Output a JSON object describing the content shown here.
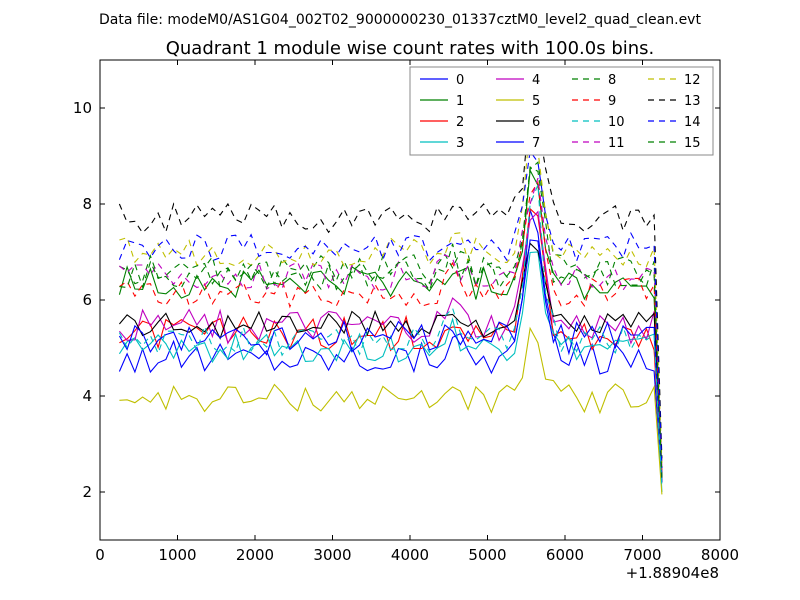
{
  "suptitle": "Data file: modeM0/AS1G04_002T02_9000000230_01337cztM0_level2_quad_clean.evt",
  "title": "Quadrant 1 module wise count rates with 100.0s bins.",
  "x_offset_label": "+1.88904e8",
  "chart_data": {
    "type": "line",
    "xlim": [
      0,
      8000
    ],
    "ylim": [
      1,
      11
    ],
    "x_ticks": [
      0,
      1000,
      2000,
      3000,
      4000,
      5000,
      6000,
      7000,
      8000
    ],
    "y_ticks": [
      2,
      4,
      6,
      8,
      10
    ],
    "legend_position": "top-right",
    "legend_columns": 4,
    "x": [
      250,
      350,
      450,
      550,
      650,
      750,
      850,
      950,
      1050,
      1150,
      1250,
      1350,
      1450,
      1550,
      1650,
      1750,
      1850,
      1950,
      2050,
      2150,
      2250,
      2350,
      2450,
      2550,
      2650,
      2750,
      2850,
      2950,
      3050,
      3150,
      3250,
      3350,
      3450,
      3550,
      3650,
      3750,
      3850,
      3950,
      4050,
      4150,
      4250,
      4350,
      4450,
      4550,
      4650,
      4750,
      4850,
      4950,
      5050,
      5150,
      5250,
      5350,
      5450,
      5550,
      5650,
      5750,
      5850,
      5950,
      6050,
      6150,
      6250,
      6350,
      6450,
      6550,
      6650,
      6750,
      6850,
      6950,
      7050,
      7150,
      7250
    ],
    "series": [
      {
        "name": "0",
        "color": "#0000ff",
        "dash": "solid",
        "base": 4.8,
        "amp": 0.35,
        "peak": 3.3,
        "end": 2.2
      },
      {
        "name": "1",
        "color": "#008000",
        "dash": "solid",
        "base": 6.35,
        "amp": 0.35,
        "peak": 2.6,
        "end": 2.3
      },
      {
        "name": "2",
        "color": "#ff0000",
        "dash": "solid",
        "base": 5.3,
        "amp": 0.35,
        "peak": 3.0,
        "end": 2.2
      },
      {
        "name": "3",
        "color": "#00bfbf",
        "dash": "solid",
        "base": 5.0,
        "amp": 0.3,
        "peak": 2.4,
        "end": 2.0
      },
      {
        "name": "4",
        "color": "#bf00bf",
        "dash": "solid",
        "base": 5.45,
        "amp": 0.35,
        "peak": 2.8,
        "end": 2.4
      },
      {
        "name": "5",
        "color": "#bfbf00",
        "dash": "solid",
        "base": 3.95,
        "amp": 0.3,
        "peak": 1.35,
        "end": 1.95
      },
      {
        "name": "6",
        "color": "#000000",
        "dash": "solid",
        "base": 5.5,
        "amp": 0.3,
        "peak": 1.7,
        "end": 2.3
      },
      {
        "name": "7",
        "color": "#0000ff",
        "dash": "solid",
        "base": 5.2,
        "amp": 0.35,
        "peak": 2.2,
        "end": 2.2
      },
      {
        "name": "8",
        "color": "#008000",
        "dash": "dashed",
        "base": 6.6,
        "amp": 0.35,
        "peak": 2.4,
        "end": 2.5
      },
      {
        "name": "9",
        "color": "#ff0000",
        "dash": "dashed",
        "base": 6.15,
        "amp": 0.3,
        "peak": 2.4,
        "end": 2.4
      },
      {
        "name": "10",
        "color": "#00bfbf",
        "dash": "dashed",
        "base": 5.15,
        "amp": 0.3,
        "peak": 3.4,
        "end": 2.1
      },
      {
        "name": "11",
        "color": "#bf00bf",
        "dash": "dashed",
        "base": 6.5,
        "amp": 0.3,
        "peak": 2.0,
        "end": 2.5
      },
      {
        "name": "12",
        "color": "#bfbf00",
        "dash": "dashed",
        "base": 7.0,
        "amp": 0.3,
        "peak": 2.7,
        "end": 2.6
      },
      {
        "name": "13",
        "color": "#000000",
        "dash": "dashed",
        "base": 7.7,
        "amp": 0.3,
        "peak": 2.5,
        "end": 2.7
      },
      {
        "name": "14",
        "color": "#0000ff",
        "dash": "dashed",
        "base": 7.1,
        "amp": 0.3,
        "peak": 2.2,
        "end": 2.5
      },
      {
        "name": "15",
        "color": "#008000",
        "dash": "dashed",
        "base": 6.5,
        "amp": 0.3,
        "peak": 2.6,
        "end": 2.3
      }
    ]
  }
}
